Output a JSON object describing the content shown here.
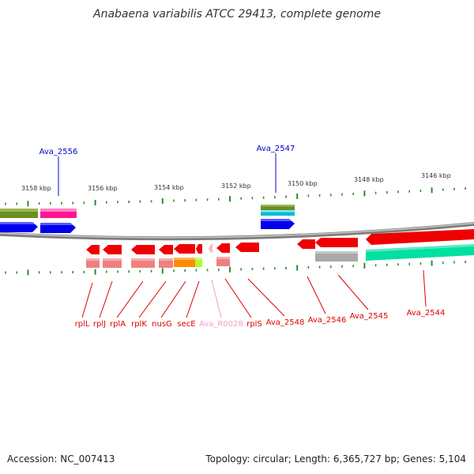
{
  "title": "Anabaena variabilis ATCC 29413, complete genome",
  "footer": {
    "accession": "Accession: NC_007413",
    "summary": "Topology: circular; Length: 6,365,727 bp; Genes: 5,104"
  },
  "colors": {
    "backbone": "#8a8a8a",
    "tick": "#2e8b2e",
    "tick_label": "#333333",
    "label_forward": "#0000cc",
    "label_reverse": "#dd0000",
    "label_rna": "#f0a0c0"
  },
  "scale_labels": [
    "3158 kbp",
    "3156 kbp",
    "3154 kbp",
    "3152 kbp",
    "3150 kbp",
    "3148 kbp",
    "3146 kbp"
  ],
  "top_labels": [
    "Ava_2556",
    "Ava_2547"
  ],
  "bottom_labels": [
    "rplL",
    "rplJ",
    "rplA",
    "rplK",
    "nusG",
    "secE",
    "Ava_R0028",
    "rplS",
    "Ava_2548",
    "Ava_2546",
    "Ava_2545",
    "Ava_2544"
  ]
}
